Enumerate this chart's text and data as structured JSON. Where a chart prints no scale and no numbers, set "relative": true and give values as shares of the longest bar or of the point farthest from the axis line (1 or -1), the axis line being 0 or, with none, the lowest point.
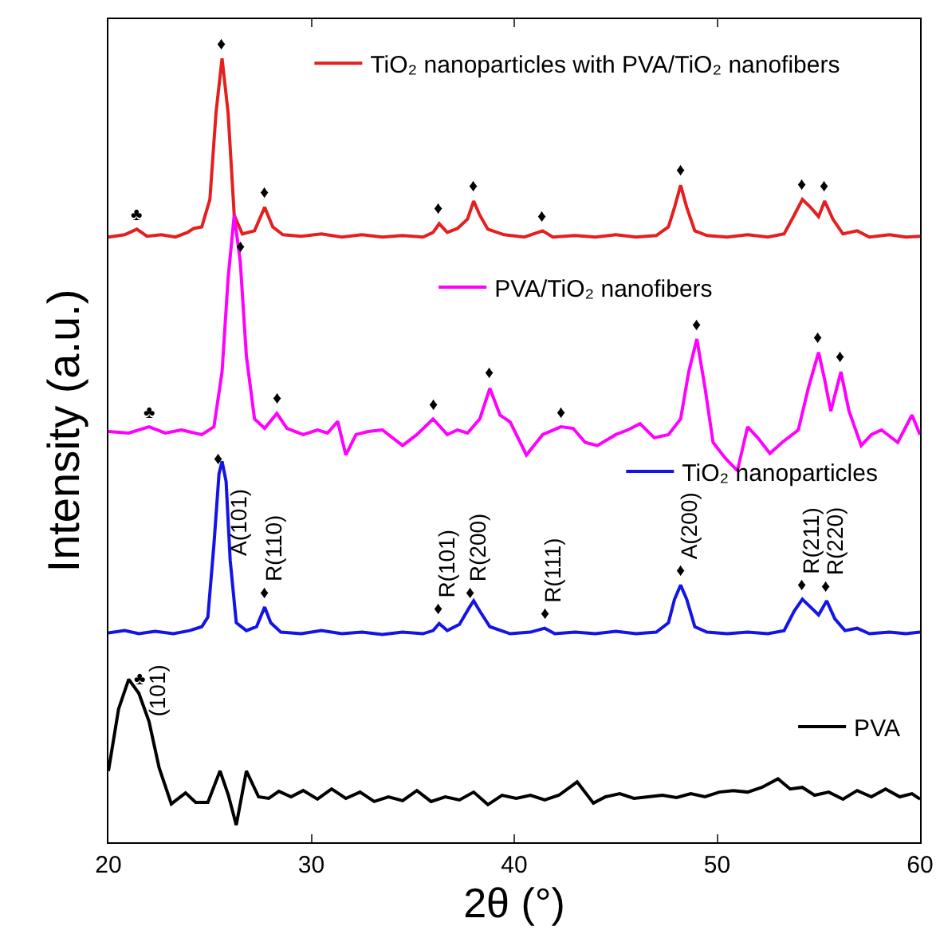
{
  "chart_data": {
    "type": "line",
    "relative": true,
    "xlabel": "2θ (°)",
    "ylabel": "Intensity (a.u.)",
    "xlim": [
      20,
      60
    ],
    "xticks": [
      20,
      30,
      40,
      50,
      60
    ],
    "legend": "right",
    "series": [
      {
        "name": "TiO₂ nanoparticles with PVA/TiO₂ nanofibers",
        "color": "#e51f1f",
        "x": [
          20,
          20.8,
          21.4,
          21.9,
          22.6,
          23.3,
          23.9,
          24.2,
          24.6,
          25.0,
          25.3,
          25.6,
          25.9,
          26.2,
          26.6,
          27.2,
          27.7,
          28.1,
          28.6,
          29.5,
          30.5,
          31.5,
          32.5,
          33.5,
          34.5,
          35.5,
          36.0,
          36.3,
          36.7,
          37.2,
          37.7,
          38.0,
          38.3,
          38.7,
          39.5,
          40.5,
          41.4,
          41.9,
          43,
          44,
          45,
          46,
          47,
          47.6,
          47.9,
          48.2,
          48.5,
          48.9,
          49.5,
          50.5,
          51.5,
          52.5,
          53.3,
          53.8,
          54.2,
          54.6,
          55.0,
          55.3,
          55.7,
          56.2,
          56.9,
          57.5,
          58.5,
          59.3,
          60
        ],
        "values": [
          0.772,
          0.775,
          0.782,
          0.773,
          0.775,
          0.772,
          0.778,
          0.783,
          0.785,
          0.82,
          0.93,
          1.0,
          0.93,
          0.8,
          0.776,
          0.78,
          0.81,
          0.785,
          0.775,
          0.773,
          0.776,
          0.772,
          0.775,
          0.772,
          0.774,
          0.772,
          0.778,
          0.789,
          0.778,
          0.783,
          0.795,
          0.818,
          0.8,
          0.782,
          0.775,
          0.772,
          0.78,
          0.772,
          0.774,
          0.772,
          0.775,
          0.772,
          0.774,
          0.785,
          0.81,
          0.838,
          0.81,
          0.78,
          0.774,
          0.772,
          0.775,
          0.772,
          0.776,
          0.8,
          0.82,
          0.81,
          0.798,
          0.818,
          0.795,
          0.776,
          0.78,
          0.772,
          0.775,
          0.772,
          0.773
        ]
      },
      {
        "name": "PVA/TiO₂ nanofibers",
        "color": "#ff00ff",
        "x": [
          20,
          21,
          22.0,
          22.8,
          23.6,
          24.6,
          25.2,
          25.6,
          25.9,
          26.2,
          26.5,
          26.8,
          27.2,
          27.7,
          28.3,
          28.8,
          29.6,
          30.3,
          30.8,
          31.3,
          31.7,
          32.2,
          32.8,
          33.5,
          34.5,
          35.2,
          36.0,
          36.7,
          37.2,
          37.7,
          38.3,
          38.8,
          39.3,
          39.8,
          40.6,
          41.4,
          42.3,
          42.9,
          43.5,
          44.1,
          45.0,
          45.6,
          46.2,
          46.9,
          47.6,
          48.2,
          48.6,
          49.0,
          49.4,
          49.8,
          50.4,
          51.0,
          51.5,
          52.0,
          52.6,
          53.2,
          54.0,
          54.5,
          55.0,
          55.3,
          55.6,
          56.1,
          56.5,
          57.1,
          57.6,
          58.1,
          58.9,
          59.6,
          60
        ],
        "values": [
          0.524,
          0.522,
          0.53,
          0.522,
          0.526,
          0.52,
          0.53,
          0.6,
          0.72,
          0.8,
          0.74,
          0.62,
          0.54,
          0.528,
          0.547,
          0.528,
          0.52,
          0.526,
          0.522,
          0.537,
          0.494,
          0.52,
          0.524,
          0.526,
          0.506,
          0.52,
          0.54,
          0.52,
          0.526,
          0.522,
          0.54,
          0.579,
          0.545,
          0.536,
          0.494,
          0.52,
          0.53,
          0.528,
          0.51,
          0.506,
          0.52,
          0.526,
          0.534,
          0.516,
          0.52,
          0.54,
          0.6,
          0.642,
          0.58,
          0.51,
          0.49,
          0.474,
          0.53,
          0.516,
          0.496,
          0.51,
          0.526,
          0.58,
          0.625,
          0.59,
          0.55,
          0.6,
          0.55,
          0.506,
          0.52,
          0.526,
          0.51,
          0.545,
          0.52
        ]
      },
      {
        "name": "TiO₂ nanoparticles",
        "color": "#1414e6",
        "x": [
          20,
          20.8,
          21.5,
          22.3,
          23.2,
          24.0,
          24.6,
          24.9,
          25.2,
          25.45,
          25.6,
          25.8,
          26.0,
          26.3,
          26.8,
          27.3,
          27.7,
          28.0,
          28.5,
          29.5,
          30.5,
          31.5,
          32.5,
          33.5,
          34.5,
          35.5,
          36.0,
          36.3,
          36.7,
          37.3,
          37.8,
          38.0,
          38.3,
          38.8,
          39.8,
          40.8,
          41.5,
          42,
          43,
          44,
          45,
          46,
          47,
          47.6,
          47.9,
          48.2,
          48.5,
          48.9,
          49.5,
          50.5,
          51.5,
          52.5,
          53.3,
          53.8,
          54.2,
          54.6,
          55.0,
          55.4,
          55.8,
          56.3,
          56.9,
          57.5,
          58.5,
          59.3,
          60
        ],
        "values": [
          0.267,
          0.27,
          0.266,
          0.269,
          0.266,
          0.27,
          0.275,
          0.287,
          0.38,
          0.47,
          0.486,
          0.46,
          0.36,
          0.28,
          0.27,
          0.275,
          0.3,
          0.28,
          0.268,
          0.266,
          0.27,
          0.266,
          0.268,
          0.265,
          0.268,
          0.266,
          0.27,
          0.279,
          0.27,
          0.278,
          0.3,
          0.308,
          0.295,
          0.275,
          0.266,
          0.268,
          0.273,
          0.266,
          0.268,
          0.266,
          0.269,
          0.266,
          0.268,
          0.28,
          0.31,
          0.328,
          0.31,
          0.275,
          0.268,
          0.266,
          0.268,
          0.266,
          0.27,
          0.295,
          0.31,
          0.3,
          0.29,
          0.308,
          0.285,
          0.27,
          0.273,
          0.266,
          0.268,
          0.266,
          0.268
        ]
      },
      {
        "name": "PVA",
        "color": "#000000",
        "x": [
          20,
          20.5,
          21.0,
          21.5,
          22.0,
          22.5,
          23.1,
          23.8,
          24.3,
          24.9,
          25.5,
          25.9,
          26.3,
          26.8,
          27.4,
          27.9,
          28.4,
          29.0,
          29.6,
          30.3,
          31.0,
          31.7,
          32.4,
          33.1,
          33.8,
          34.5,
          35.2,
          35.9,
          36.6,
          37.3,
          38.0,
          38.7,
          39.4,
          40.1,
          40.8,
          41.5,
          42.2,
          43.1,
          43.9,
          44.5,
          45.2,
          45.9,
          46.6,
          47.3,
          48.0,
          48.7,
          49.4,
          50.1,
          50.8,
          51.5,
          52.2,
          53.0,
          53.6,
          54.2,
          54.8,
          55.5,
          56.2,
          56.9,
          57.6,
          58.3,
          59.0,
          59.6,
          60
        ],
        "values": [
          0.091,
          0.17,
          0.208,
          0.19,
          0.154,
          0.095,
          0.049,
          0.063,
          0.051,
          0.051,
          0.091,
          0.061,
          0.022,
          0.091,
          0.058,
          0.056,
          0.065,
          0.058,
          0.066,
          0.055,
          0.068,
          0.056,
          0.064,
          0.052,
          0.058,
          0.053,
          0.066,
          0.052,
          0.058,
          0.054,
          0.064,
          0.048,
          0.06,
          0.056,
          0.06,
          0.054,
          0.06,
          0.077,
          0.05,
          0.058,
          0.062,
          0.056,
          0.058,
          0.06,
          0.057,
          0.062,
          0.058,
          0.064,
          0.066,
          0.064,
          0.07,
          0.081,
          0.068,
          0.07,
          0.06,
          0.064,
          0.055,
          0.066,
          0.058,
          0.068,
          0.058,
          0.062,
          0.055
        ]
      }
    ],
    "annotations": [
      {
        "text": "♦",
        "x": 25.6,
        "y": 1.0
      },
      {
        "text": "♣",
        "x": 21.4,
        "y": 0.782
      },
      {
        "text": "♦",
        "x": 27.7,
        "y": 0.81
      },
      {
        "text": "♦",
        "x": 36.3,
        "y": 0.789
      },
      {
        "text": "♦",
        "x": 38.0,
        "y": 0.818
      },
      {
        "text": "♦",
        "x": 41.4,
        "y": 0.78
      },
      {
        "text": "♦",
        "x": 48.2,
        "y": 0.838
      },
      {
        "text": "♦",
        "x": 54.2,
        "y": 0.82
      },
      {
        "text": "♦",
        "x": 55.3,
        "y": 0.818
      },
      {
        "text": "♦",
        "x": 26.5,
        "y": 0.74
      },
      {
        "text": "♣",
        "x": 22.0,
        "y": 0.53
      },
      {
        "text": "♦",
        "x": 28.3,
        "y": 0.547
      },
      {
        "text": "♦",
        "x": 36.0,
        "y": 0.54
      },
      {
        "text": "♦",
        "x": 38.8,
        "y": 0.579
      },
      {
        "text": "♦",
        "x": 42.3,
        "y": 0.53
      },
      {
        "text": "♦",
        "x": 49.0,
        "y": 0.642
      },
      {
        "text": "♦",
        "x": 55.0,
        "y": 0.625
      },
      {
        "text": "♦",
        "x": 56.1,
        "y": 0.6
      },
      {
        "text": "♦",
        "x": 25.45,
        "y": 0.47
      },
      {
        "text": "A(101)",
        "x": 26.0,
        "y": 0.36
      },
      {
        "text": "♦",
        "x": 27.7,
        "y": 0.3
      },
      {
        "text": "R(110)",
        "x": 27.7,
        "y": 0.3
      },
      {
        "text": "♦",
        "x": 36.3,
        "y": 0.279
      },
      {
        "text": "R(101)",
        "x": 36.3,
        "y": 0.279
      },
      {
        "text": "♦",
        "x": 37.8,
        "y": 0.3
      },
      {
        "text": "R(200)",
        "x": 37.8,
        "y": 0.3
      },
      {
        "text": "♦",
        "x": 41.5,
        "y": 0.273
      },
      {
        "text": "R(111)",
        "x": 41.5,
        "y": 0.273
      },
      {
        "text": "♦",
        "x": 48.2,
        "y": 0.328
      },
      {
        "text": "A(200)",
        "x": 48.2,
        "y": 0.328
      },
      {
        "text": "♦",
        "x": 54.2,
        "y": 0.31
      },
      {
        "text": "R(211)",
        "x": 54.2,
        "y": 0.31
      },
      {
        "text": "♦",
        "x": 55.4,
        "y": 0.308
      },
      {
        "text": "R(220)",
        "x": 55.4,
        "y": 0.308
      },
      {
        "text": "♣",
        "x": 21.5,
        "y": 0.19
      },
      {
        "text": "(101)",
        "x": 22.0,
        "y": 0.154
      }
    ]
  }
}
